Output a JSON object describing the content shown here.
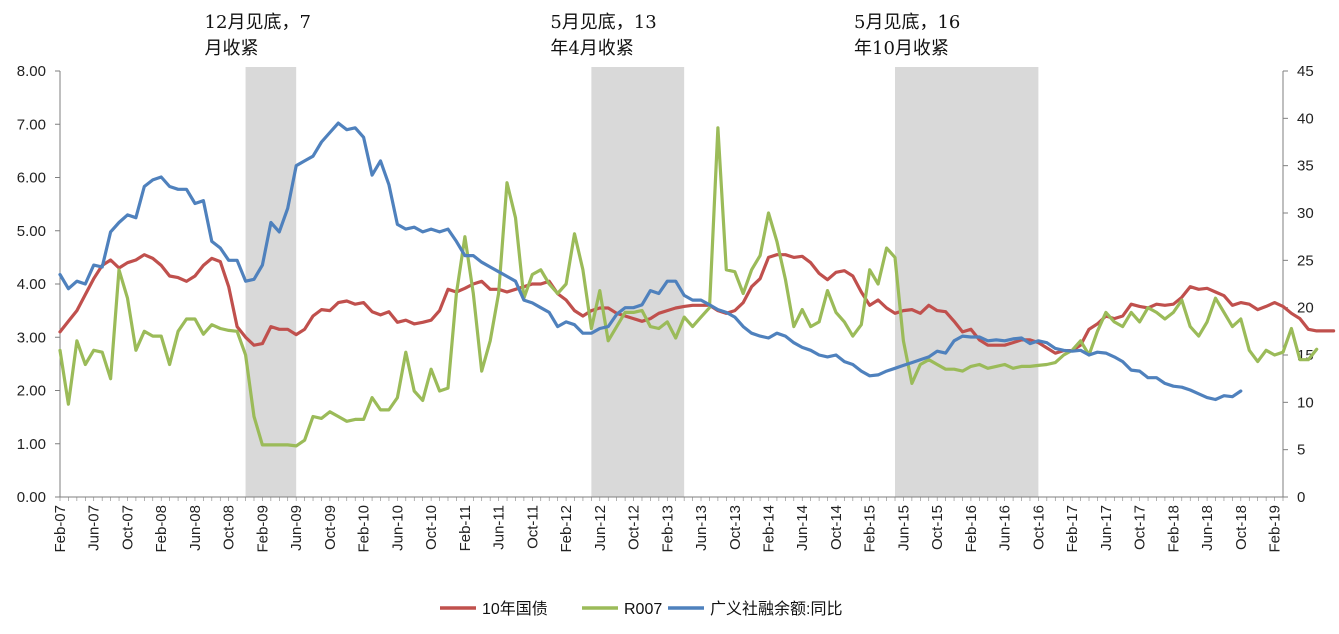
{
  "chart_data": {
    "type": "line",
    "title": "",
    "xlabel": "",
    "ylabel": "",
    "ylim": [
      0,
      8
    ],
    "y2lim": [
      0,
      45
    ],
    "y_ticks": [
      "0.00",
      "1.00",
      "2.00",
      "3.00",
      "4.00",
      "5.00",
      "6.00",
      "7.00",
      "8.00"
    ],
    "y2_ticks": [
      "0",
      "5",
      "10",
      "15",
      "20",
      "25",
      "30",
      "35",
      "40",
      "45"
    ],
    "x_start": "2007-02",
    "x_end": "2019-03",
    "x_ticks": [
      "Feb-07",
      "Jun-07",
      "Oct-07",
      "Feb-08",
      "Jun-08",
      "Oct-08",
      "Feb-09",
      "Jun-09",
      "Oct-09",
      "Feb-10",
      "Jun-10",
      "Oct-10",
      "Feb-11",
      "Jun-11",
      "Oct-11",
      "Feb-12",
      "Jun-12",
      "Oct-12",
      "Feb-13",
      "Jun-13",
      "Oct-13",
      "Feb-14",
      "Jun-14",
      "Oct-14",
      "Feb-15",
      "Jun-15",
      "Oct-15",
      "Feb-16",
      "Jun-16",
      "Oct-16",
      "Feb-17",
      "Jun-17",
      "Oct-17",
      "Feb-18",
      "Jun-18",
      "Oct-18",
      "Feb-19"
    ],
    "legend_position": "bottom",
    "grid": false,
    "annotations": [
      {
        "lines": [
          "12月见底，7",
          "月收紧"
        ],
        "x_from": "2008-12",
        "x_to": "2009-05"
      },
      {
        "lines": [
          "5月见底，13",
          "年4月收紧"
        ],
        "x_from": "2012-05",
        "x_to": "2013-03"
      },
      {
        "lines": [
          "5月见底，16",
          "年10月收紧"
        ],
        "x_from": "2015-05",
        "x_to": "2016-09"
      }
    ],
    "series": [
      {
        "name": "10年国债",
        "color": "#C0504D",
        "axis": "left",
        "values": [
          3.1,
          3.3,
          3.5,
          3.8,
          4.1,
          4.35,
          4.45,
          4.3,
          4.4,
          4.45,
          4.55,
          4.48,
          4.35,
          4.15,
          4.12,
          4.05,
          4.15,
          4.35,
          4.48,
          4.42,
          3.95,
          3.2,
          3.0,
          2.85,
          2.88,
          3.2,
          3.15,
          3.15,
          3.05,
          3.15,
          3.4,
          3.52,
          3.5,
          3.65,
          3.68,
          3.62,
          3.65,
          3.48,
          3.42,
          3.48,
          3.28,
          3.32,
          3.25,
          3.28,
          3.32,
          3.5,
          3.9,
          3.85,
          3.92,
          4.0,
          4.05,
          3.9,
          3.9,
          3.85,
          3.9,
          3.95,
          4.0,
          4.0,
          4.05,
          3.82,
          3.7,
          3.5,
          3.4,
          3.5,
          3.55,
          3.55,
          3.45,
          3.4,
          3.35,
          3.3,
          3.35,
          3.45,
          3.5,
          3.55,
          3.58,
          3.6,
          3.6,
          3.6,
          3.5,
          3.45,
          3.5,
          3.65,
          3.95,
          4.1,
          4.5,
          4.55,
          4.55,
          4.5,
          4.52,
          4.4,
          4.2,
          4.08,
          4.22,
          4.25,
          4.15,
          3.85,
          3.6,
          3.7,
          3.55,
          3.45,
          3.5,
          3.52,
          3.45,
          3.6,
          3.5,
          3.48,
          3.3,
          3.1,
          3.15,
          2.95,
          2.85,
          2.85,
          2.85,
          2.9,
          2.95,
          2.95,
          2.9,
          2.8,
          2.7,
          2.75,
          2.75,
          2.85,
          3.15,
          3.25,
          3.4,
          3.35,
          3.4,
          3.62,
          3.58,
          3.55,
          3.62,
          3.6,
          3.62,
          3.75,
          3.95,
          3.9,
          3.92,
          3.85,
          3.78,
          3.6,
          3.65,
          3.62,
          3.52,
          3.58,
          3.65,
          3.58,
          3.45,
          3.35,
          3.15,
          3.12,
          3.12,
          3.12
        ]
      },
      {
        "name": "R007",
        "color": "#9BBB59",
        "axis": "right",
        "values": [
          15.5,
          9.8,
          16.5,
          14.0,
          15.5,
          15.3,
          12.5,
          24.0,
          21.0,
          15.5,
          17.5,
          17.0,
          17.0,
          14.0,
          17.5,
          18.8,
          18.8,
          17.2,
          18.2,
          17.8,
          17.6,
          17.5,
          15.0,
          8.5,
          5.5,
          5.5,
          5.5,
          5.5,
          5.4,
          6.0,
          8.5,
          8.3,
          9.0,
          8.5,
          8.0,
          8.2,
          8.2,
          10.5,
          9.2,
          9.2,
          10.5,
          15.3,
          11.2,
          10.2,
          13.5,
          11.2,
          11.5,
          21.5,
          27.5,
          21.5,
          13.3,
          16.5,
          21.5,
          33.2,
          29.5,
          21.0,
          23.5,
          24.0,
          22.5,
          21.5,
          22.5,
          27.8,
          24.0,
          17.8,
          21.8,
          16.5,
          18.0,
          19.5,
          19.5,
          19.7,
          18.0,
          17.8,
          18.5,
          16.8,
          19.0,
          18.0,
          19.0,
          20.0,
          39.0,
          24.0,
          23.8,
          21.5,
          24.0,
          25.5,
          30.0,
          27.0,
          23.0,
          18.0,
          19.8,
          18.0,
          18.5,
          21.8,
          19.5,
          18.5,
          17.0,
          18.2,
          24.0,
          22.5,
          26.3,
          25.3,
          16.5,
          12.0,
          14.0,
          14.5,
          14.0,
          13.5,
          13.5,
          13.3,
          13.8,
          14.0,
          13.6,
          13.8,
          14.0,
          13.6,
          13.8,
          13.8,
          13.9,
          14.0,
          14.2,
          15.0,
          15.5,
          16.5,
          15.0,
          17.5,
          19.5,
          18.5,
          18.0,
          19.5,
          18.5,
          20.0,
          19.5,
          18.8,
          19.5,
          20.8,
          18.0,
          17.0,
          18.5,
          21.0,
          19.5,
          18.0,
          18.8,
          15.5,
          14.3,
          15.5,
          15.0,
          15.3,
          17.8,
          14.5,
          14.5,
          15.6
        ]
      },
      {
        "name": "广义社融余额:同比",
        "color": "#4F81BD",
        "axis": "right",
        "values": [
          23.5,
          22.0,
          22.8,
          22.5,
          24.5,
          24.3,
          28.0,
          29.0,
          29.8,
          29.5,
          32.8,
          33.5,
          33.8,
          32.8,
          32.5,
          32.5,
          31.0,
          31.3,
          27.0,
          26.3,
          25.0,
          25.0,
          22.8,
          23.0,
          24.5,
          29.0,
          28.0,
          30.5,
          35.0,
          35.5,
          36.0,
          37.5,
          38.5,
          39.5,
          38.8,
          39.0,
          38.0,
          34.0,
          35.5,
          33.0,
          28.8,
          28.3,
          28.5,
          28.0,
          28.3,
          28.0,
          28.3,
          27.0,
          25.5,
          25.5,
          24.8,
          24.3,
          23.8,
          23.3,
          22.8,
          20.8,
          20.5,
          20.0,
          19.5,
          18.0,
          18.5,
          18.2,
          17.3,
          17.3,
          17.8,
          18.0,
          19.3,
          20.0,
          20.0,
          20.3,
          21.8,
          21.5,
          22.8,
          22.8,
          21.3,
          20.8,
          20.8,
          20.3,
          19.8,
          19.5,
          19.0,
          18.0,
          17.3,
          17.0,
          16.8,
          17.3,
          17.0,
          16.3,
          15.8,
          15.5,
          15.0,
          14.8,
          15.0,
          14.3,
          14.0,
          13.3,
          12.8,
          12.9,
          13.3,
          13.6,
          13.9,
          14.2,
          14.5,
          14.8,
          15.4,
          15.2,
          16.5,
          17.0,
          16.9,
          16.9,
          16.5,
          16.6,
          16.5,
          16.7,
          16.8,
          16.2,
          16.5,
          16.3,
          15.7,
          15.5,
          15.4,
          15.5,
          15.0,
          15.3,
          15.2,
          14.8,
          14.3,
          13.4,
          13.3,
          12.6,
          12.6,
          12.0,
          11.7,
          11.6,
          11.3,
          10.9,
          10.5,
          10.3,
          10.7,
          10.6,
          11.2
        ]
      }
    ]
  }
}
